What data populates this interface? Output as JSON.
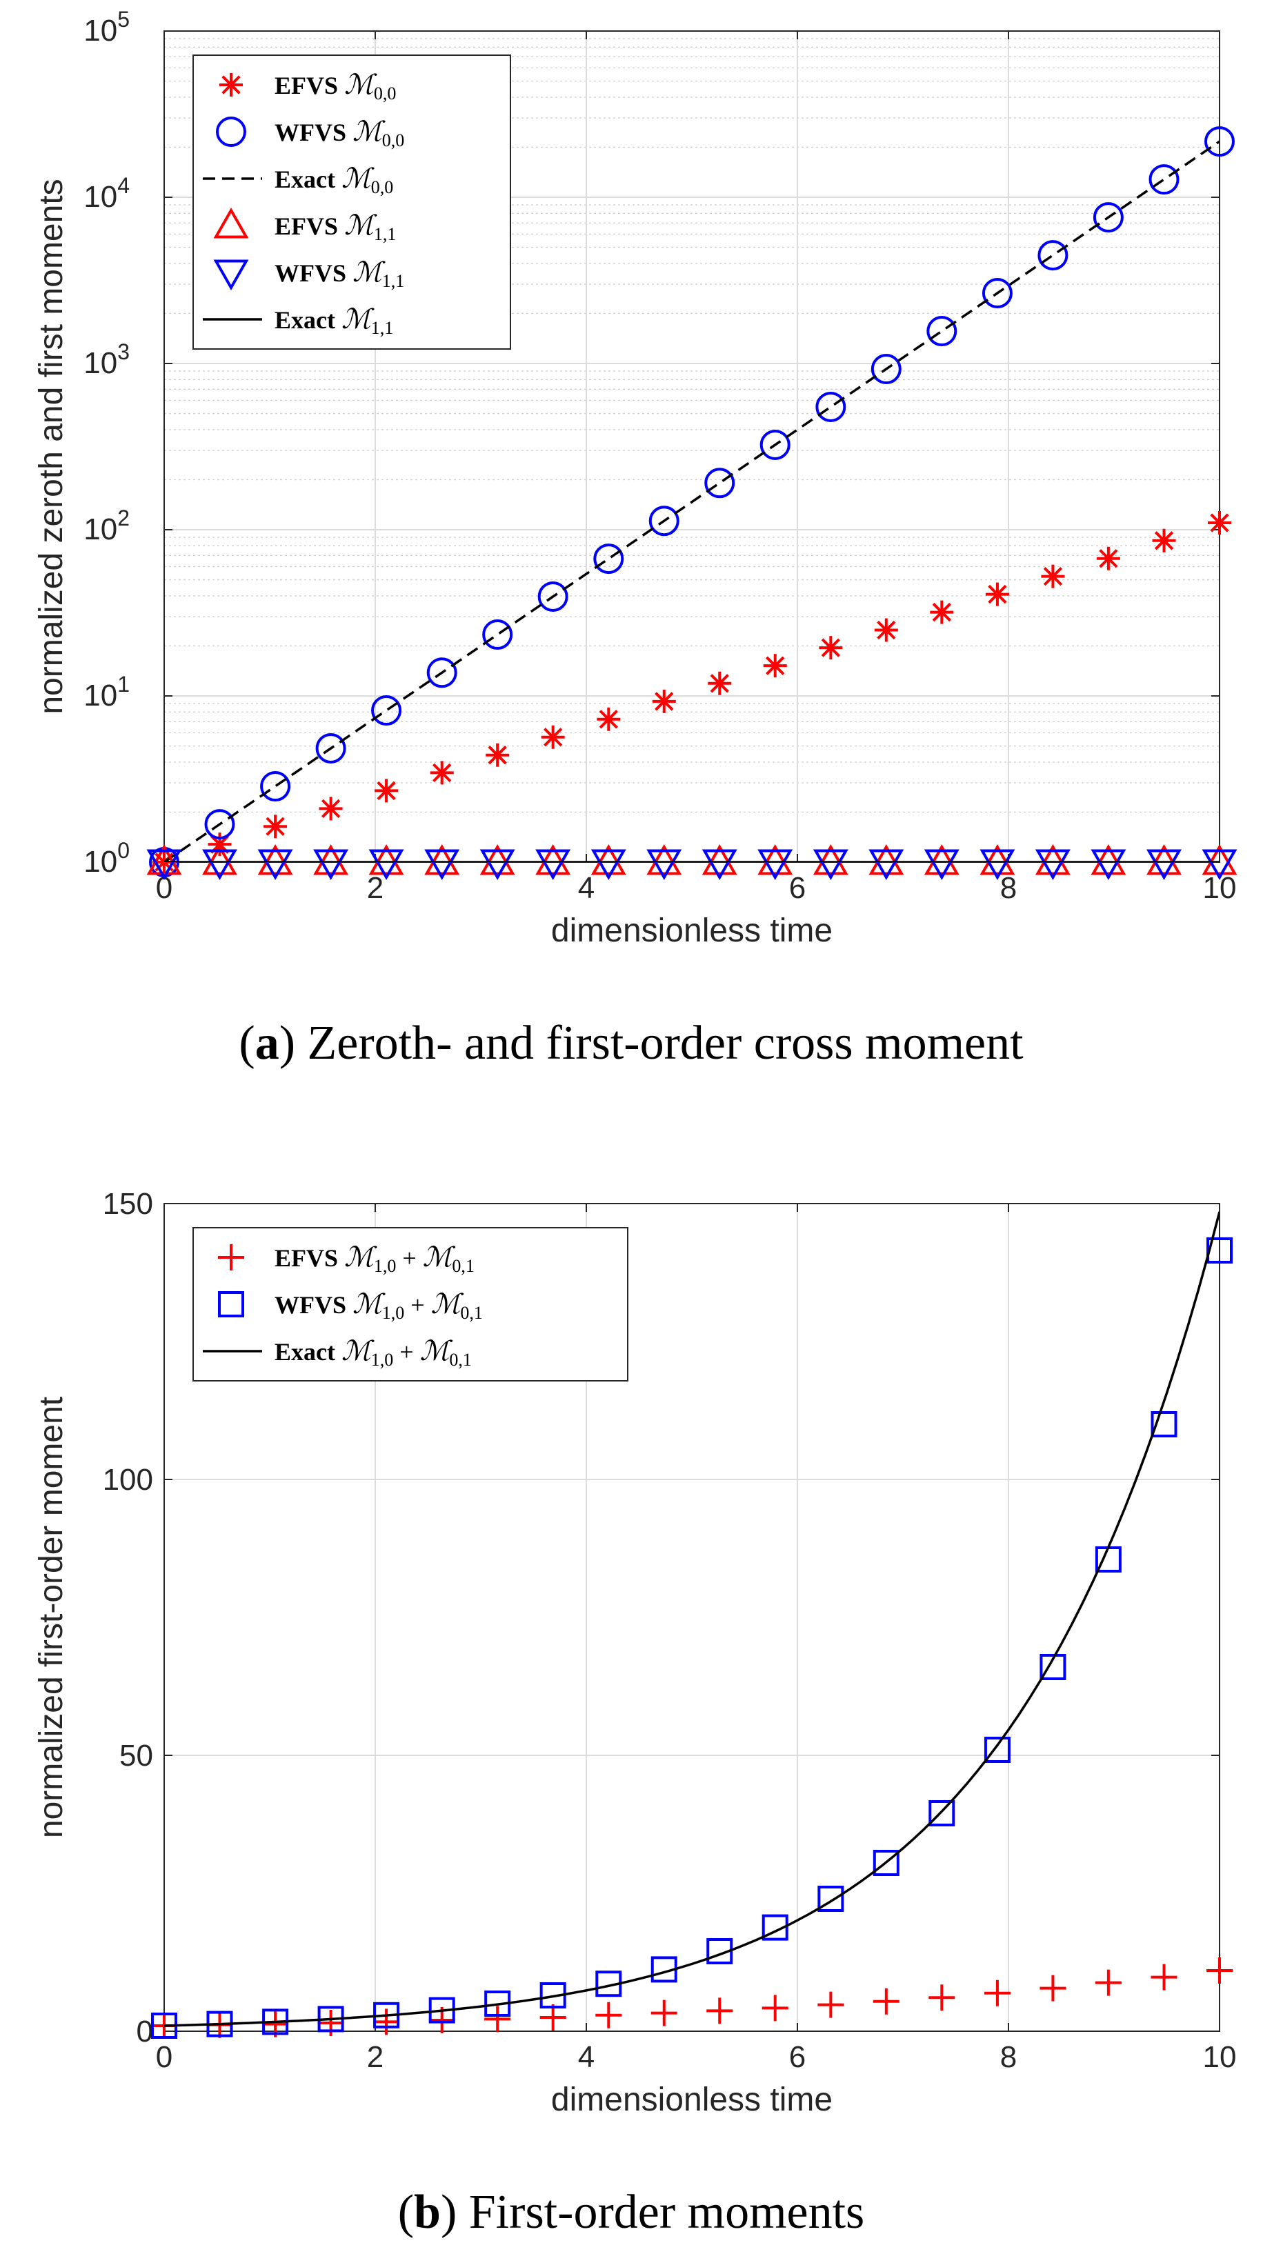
{
  "chart_data": [
    {
      "type": "scatter",
      "panel": "a",
      "yscale": "log",
      "xlabel": "dimensionless time",
      "ylabel": "normalized zeroth and first moments",
      "xlim": [
        0,
        10
      ],
      "ylim": [
        1,
        100000
      ],
      "xticks": [
        "0",
        "2",
        "4",
        "6",
        "8",
        "10"
      ],
      "yticks": [
        {
          "base": "10",
          "exp": "0"
        },
        {
          "base": "10",
          "exp": "1"
        },
        {
          "base": "10",
          "exp": "2"
        },
        {
          "base": "10",
          "exp": "3"
        },
        {
          "base": "10",
          "exp": "4"
        },
        {
          "base": "10",
          "exp": "5"
        }
      ],
      "grid": true,
      "legend_position": "top-left",
      "caption": {
        "label": "a",
        "text": "Zeroth- and first-order cross moment"
      },
      "x": [
        0,
        0.526,
        1.053,
        1.579,
        2.105,
        2.632,
        3.158,
        3.684,
        4.211,
        4.737,
        5.263,
        5.789,
        6.316,
        6.842,
        7.368,
        7.895,
        8.421,
        8.947,
        9.474,
        10
      ],
      "series": [
        {
          "name": "EFVS",
          "symbol": "ℳ",
          "subscript": "0,0",
          "marker": "asterisk",
          "color": "#ff0000",
          "values": [
            1,
            1.28,
            1.64,
            2.1,
            2.69,
            3.45,
            4.41,
            5.65,
            7.24,
            9.27,
            11.9,
            15.2,
            19.5,
            24.9,
            31.9,
            40.9,
            52.4,
            67.1,
            86,
            110
          ]
        },
        {
          "name": "WFVS",
          "symbol": "ℳ",
          "subscript": "0,0",
          "marker": "circle",
          "color": "#0000ff",
          "values": [
            1,
            1.69,
            2.86,
            4.84,
            8.18,
            13.8,
            23.4,
            39.6,
            66.9,
            113,
            191,
            324,
            548,
            926,
            1566,
            2649,
            4479,
            7574,
            12808,
            21660
          ]
        },
        {
          "name": "Exact",
          "symbol": "ℳ",
          "subscript": "0,0",
          "marker": "dashed-line",
          "color": "#000000",
          "values": [
            1,
            1.69,
            2.86,
            4.84,
            8.18,
            13.8,
            23.4,
            39.6,
            66.9,
            113,
            191,
            324,
            548,
            926,
            1566,
            2649,
            4479,
            7574,
            12808,
            21660
          ]
        },
        {
          "name": "EFVS",
          "symbol": "ℳ",
          "subscript": "1,1",
          "marker": "triangle-up",
          "color": "#ff0000",
          "values": [
            1,
            1,
            1,
            1,
            1,
            1,
            1,
            1,
            1,
            1,
            1,
            1,
            1,
            1,
            1,
            1,
            1,
            1,
            1,
            1
          ]
        },
        {
          "name": "WFVS",
          "symbol": "ℳ",
          "subscript": "1,1",
          "marker": "triangle-down",
          "color": "#0000ff",
          "values": [
            1,
            1,
            1,
            1,
            1,
            1,
            1,
            1,
            1,
            1,
            1,
            1,
            1,
            1,
            1,
            1,
            1,
            1,
            1,
            1
          ]
        },
        {
          "name": "Exact",
          "symbol": "ℳ",
          "subscript": "1,1",
          "marker": "solid-line",
          "color": "#000000",
          "values": [
            1,
            1,
            1,
            1,
            1,
            1,
            1,
            1,
            1,
            1,
            1,
            1,
            1,
            1,
            1,
            1,
            1,
            1,
            1,
            1
          ]
        }
      ]
    },
    {
      "type": "scatter",
      "panel": "b",
      "yscale": "linear",
      "xlabel": "dimensionless time",
      "ylabel": "normalized first-order moment",
      "xlim": [
        0,
        10
      ],
      "ylim": [
        0,
        150
      ],
      "xticks": [
        "0",
        "2",
        "4",
        "6",
        "8",
        "10"
      ],
      "yticks": [
        "0",
        "50",
        "100",
        "150"
      ],
      "grid": true,
      "legend_position": "top-left",
      "caption": {
        "label": "b",
        "text": "First-order moments"
      },
      "x": [
        0,
        0.526,
        1.053,
        1.579,
        2.105,
        2.632,
        3.158,
        3.684,
        4.211,
        4.737,
        5.263,
        5.789,
        6.316,
        6.842,
        7.368,
        7.895,
        8.421,
        8.947,
        9.474,
        10
      ],
      "series": [
        {
          "name": "EFVS",
          "formula": "ℳ 1,0 + ℳ 0,1",
          "marker": "plus",
          "color": "#ff0000",
          "values": [
            1,
            1.15,
            1.3,
            1.5,
            1.7,
            2.0,
            2.2,
            2.5,
            2.9,
            3.3,
            3.7,
            4.2,
            4.8,
            5.4,
            6.1,
            6.9,
            7.8,
            8.8,
            9.8,
            11
          ]
        },
        {
          "name": "WFVS",
          "formula": "ℳ 1,0 + ℳ 0,1",
          "marker": "square",
          "color": "#0000ff",
          "values": [
            1,
            1.3,
            1.7,
            2.2,
            2.9,
            3.8,
            5,
            6.5,
            8.6,
            11.2,
            14.5,
            18.8,
            24,
            30.5,
            39.5,
            51,
            66,
            85.5,
            110,
            141.5
          ]
        },
        {
          "name": "Exact",
          "formula": "ℳ 1,0 + ℳ 0,1",
          "marker": "solid-line",
          "color": "#000000",
          "values": [
            1,
            1.3,
            1.7,
            2.2,
            2.9,
            3.8,
            5,
            6.5,
            8.6,
            11.2,
            14.5,
            18.8,
            24,
            30.5,
            39.5,
            51,
            66,
            85.5,
            112,
            148.5
          ]
        }
      ]
    }
  ]
}
